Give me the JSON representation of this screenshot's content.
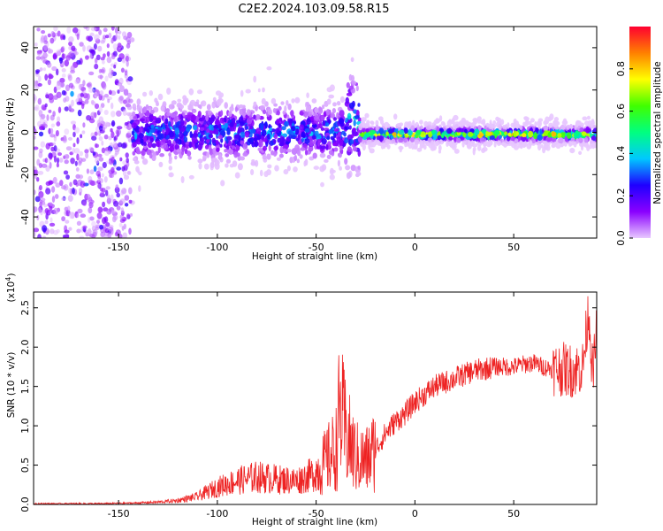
{
  "title": "C2E2.2024.103.09.58.R15",
  "chart_data": [
    {
      "type": "heatmap",
      "xlabel": "Height of straight line (km)",
      "ylabel": "Frequency (Hz)",
      "xlim": [
        -193,
        92
      ],
      "ylim": [
        -50,
        50
      ],
      "xticks": [
        -150,
        -100,
        -50,
        0,
        50
      ],
      "xtick_labels": [
        "-150",
        "-100",
        "-50",
        "0",
        "50"
      ],
      "yticks": [
        -40,
        -20,
        0,
        20,
        40
      ],
      "ytick_labels": [
        "-40",
        "-20",
        "0",
        "20",
        "40"
      ],
      "colorbar": {
        "label": "Normalized spectral amplitude",
        "range": [
          0,
          1
        ],
        "ticks": [
          0.0,
          0.2,
          0.4,
          0.6,
          0.8
        ],
        "tick_labels": [
          "0.0",
          "0.2",
          "0.4",
          "0.6",
          "0.8"
        ],
        "colors": [
          "#e8c8ff",
          "#8a00ff",
          "#1f00ff",
          "#00c8ff",
          "#00ff80",
          "#40ff00",
          "#ffff00",
          "#ff8000",
          "#ff0030"
        ]
      },
      "regions": [
        {
          "x_range": [
            -193,
            -143
          ],
          "center_freq": 0,
          "spread": 50,
          "amplitude": 0.1
        },
        {
          "x_range": [
            -143,
            -35
          ],
          "center_freq": 0,
          "spread": 8,
          "amplitude": 0.25
        },
        {
          "x_range": [
            -35,
            -28
          ],
          "center_freq": 5,
          "spread": 14,
          "amplitude": 0.3
        },
        {
          "x_range": [
            -28,
            92
          ],
          "center_freq": -1,
          "spread": 3,
          "amplitude": 0.85
        }
      ]
    },
    {
      "type": "line",
      "xlabel": "Height of straight line (km)",
      "ylabel": "SNR (10 * v/v)",
      "y_multiplier": "(x10^4)",
      "xlim": [
        -193,
        92
      ],
      "ylim": [
        0,
        2.7
      ],
      "xticks": [
        -150,
        -100,
        -50,
        0,
        50
      ],
      "xtick_labels": [
        "-150",
        "-100",
        "-50",
        "0",
        "50"
      ],
      "yticks": [
        0.0,
        0.5,
        1.0,
        1.5,
        2.0,
        2.5
      ],
      "ytick_labels": [
        "0.0",
        "0.5",
        "1.0",
        "1.5",
        "2.0",
        "2.5"
      ],
      "color": "#ee2222",
      "series": [
        {
          "x": [
            -193,
            -180,
            -160,
            -140,
            -130,
            -120,
            -110,
            -100,
            -90,
            -80,
            -70,
            -60,
            -50,
            -45,
            -40,
            -38,
            -35,
            -30,
            -25,
            -20,
            -15,
            -10,
            -5,
            0,
            5,
            10,
            15,
            20,
            25,
            30,
            35,
            40,
            45,
            50,
            55,
            60,
            65,
            70,
            75,
            80,
            85,
            88,
            90,
            92
          ],
          "y": [
            0.01,
            0.01,
            0.01,
            0.02,
            0.03,
            0.05,
            0.1,
            0.22,
            0.3,
            0.35,
            0.32,
            0.3,
            0.4,
            0.55,
            0.7,
            1.2,
            0.9,
            0.6,
            0.55,
            0.7,
            0.9,
            1.05,
            1.15,
            1.3,
            1.4,
            1.5,
            1.55,
            1.6,
            1.65,
            1.7,
            1.72,
            1.75,
            1.75,
            1.75,
            1.78,
            1.8,
            1.75,
            1.72,
            1.72,
            1.7,
            1.75,
            2.5,
            1.6,
            2.2
          ]
        }
      ]
    }
  ]
}
